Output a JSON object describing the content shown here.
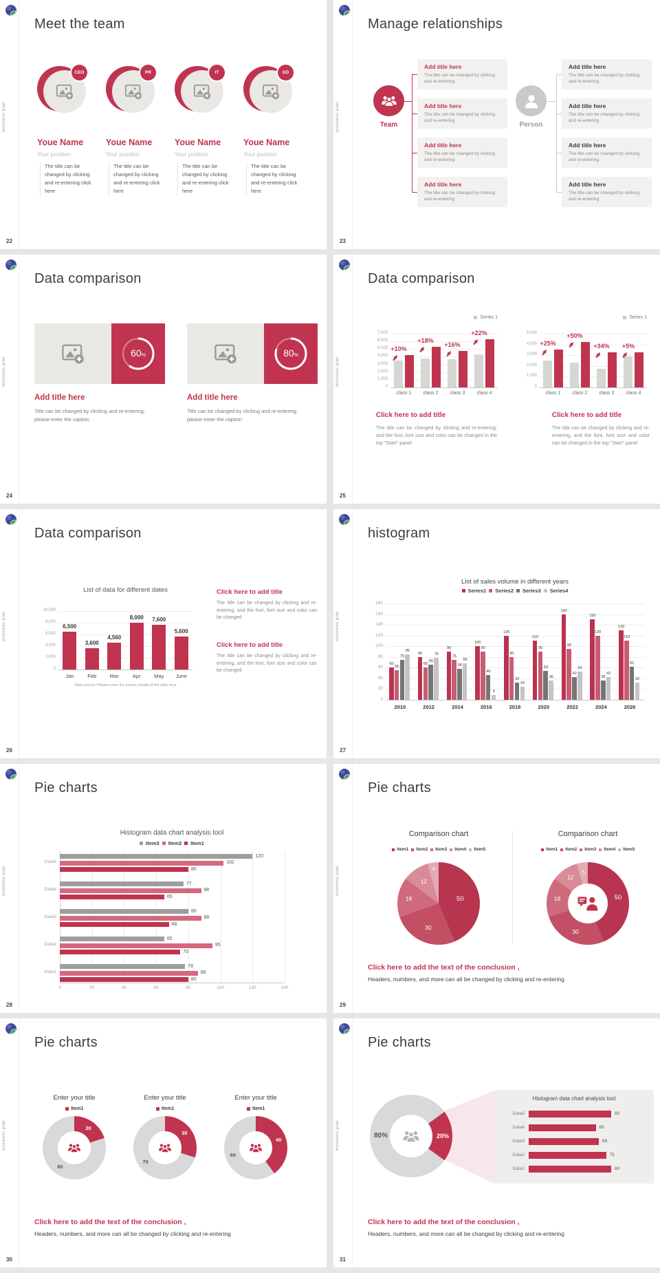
{
  "strings": {
    "sidebar_label": "Business plan",
    "percent_sign": "%",
    "conclusion_title": "Click here to add the text of the conclusion ,",
    "conclusion_text": "Headers, numbers, and more can all be changed by clicking and re-entering"
  },
  "colors": {
    "accent": "#c0344f",
    "accent_dark": "#b93350",
    "pink": "#d4697d",
    "bar_gray": "#d6d6d3",
    "series_gray_dark": "#757575",
    "series_gray_light": "#c4c4c4",
    "donut_gray": "#d9d9d9",
    "pie_palette": [
      "#b7354f",
      "#c34f65",
      "#ce6a7c",
      "#d98b98",
      "#e3abb4"
    ]
  },
  "slides": [
    {
      "page": "22",
      "title": "Meet the team",
      "type": "team",
      "members": [
        {
          "badge": "CEO",
          "name": "Youe Name",
          "position": "Your position",
          "desc": "The title can be changed by clicking and re-entering click here"
        },
        {
          "badge": "PR",
          "name": "Youe Name",
          "position": "Your position",
          "desc": "The title can be changed by clicking and re-entering click here"
        },
        {
          "badge": "IT",
          "name": "Youe Name",
          "position": "Your position",
          "desc": "The title can be changed by clicking and re-entering click here"
        },
        {
          "badge": "GD",
          "name": "Youe Name",
          "position": "Your position",
          "desc": "The title can be changed by clicking and re-entering click here"
        }
      ]
    },
    {
      "page": "23",
      "title": "Manage relationships",
      "type": "relationships",
      "groups": [
        {
          "label": "Team",
          "boxes": [
            {
              "title": "Add title here",
              "text": "The title can be changed by clicking and re-entering"
            },
            {
              "title": "Add title here",
              "text": "The title can be changed by clicking and re-entering"
            },
            {
              "title": "Add title here",
              "text": "The title can be changed by clicking and re-entering"
            },
            {
              "title": "Add title here",
              "text": "The title can be changed by clicking and re-entering"
            }
          ]
        },
        {
          "label": "Person",
          "boxes": [
            {
              "title": "Add title here",
              "text": "The title can be changed by clicking and re-entering"
            },
            {
              "title": "Add title here",
              "text": "The title can be changed by clicking and re-entering"
            },
            {
              "title": "Add title here",
              "text": "The title can be changed by clicking and re-entering"
            },
            {
              "title": "Add title here",
              "text": "The title can be changed by clicking and re-entering"
            }
          ]
        }
      ]
    },
    {
      "page": "24",
      "title": "Data comparison",
      "type": "percent_cards",
      "cards": [
        {
          "percent": "60",
          "title": "Add title here",
          "caption": "Title can be changed by clicking and re-entering, please enter the caption"
        },
        {
          "percent": "80",
          "title": "Add title here",
          "caption": "Title can be changed by clicking and re-entering, please enter the caption"
        }
      ]
    },
    {
      "page": "25",
      "title": "Data comparison",
      "type": "dual_bar",
      "chart_refs": [
        0,
        1
      ],
      "blocks": [
        {
          "title": "Click here to add title",
          "text": "The title can be changed by clicking and re-entering, and the font, font size and color can be changed in the top \"Start\" panel"
        },
        {
          "title": "Click here to add title",
          "text": "The title can be changed by clicking and re-entering, and the font, font size and color can be changed in the top \"Start\" panel"
        }
      ]
    },
    {
      "page": "26",
      "title": "Data comparison",
      "type": "month_bar",
      "chart_refs": [
        2
      ],
      "blocks": [
        {
          "title": "Click here to add title",
          "text": "The title can be changed by clicking and re-entering, and the font, font size and color can be changed"
        },
        {
          "title": "Click here to add title",
          "text": "The title can be changed by clicking and re-entering, and the font, font size and color can be changed"
        }
      ]
    },
    {
      "page": "27",
      "title": "histogram",
      "type": "histogram",
      "chart_refs": [
        3
      ]
    },
    {
      "page": "28",
      "title": "Pie charts",
      "type": "hbar",
      "chart_refs": [
        4
      ]
    },
    {
      "page": "29",
      "title": "Pie charts",
      "type": "pies",
      "chart_refs": [
        5,
        6
      ]
    },
    {
      "page": "30",
      "title": "Pie charts",
      "type": "donuts3",
      "chart_refs": [
        7,
        8,
        9
      ]
    },
    {
      "page": "31",
      "title": "Pie charts",
      "type": "magnify",
      "chart_refs": [
        10,
        11
      ]
    }
  ],
  "chart_data": [
    {
      "type": "bar",
      "legend": [
        "Series 1"
      ],
      "categories": [
        "class 1",
        "class 2",
        "class 3",
        "class 4"
      ],
      "series": [
        {
          "color": "gray",
          "values": [
            3500,
            3800,
            3700,
            4300
          ]
        },
        {
          "color": "red",
          "values": [
            4200,
            5300,
            4800,
            6300
          ]
        }
      ],
      "annotations": [
        "+10%",
        "+18%",
        "+16%",
        "+22%"
      ],
      "ylim": [
        0,
        7000
      ],
      "yticks": [
        "7,000",
        "6,000",
        "5,000",
        "4,000",
        "3,000",
        "2,000",
        "1,000",
        "0"
      ]
    },
    {
      "type": "bar",
      "legend": [
        "Series 1"
      ],
      "categories": [
        "class 1",
        "class 2",
        "class 3",
        "class 4"
      ],
      "series": [
        {
          "color": "gray",
          "values": [
            2500,
            2300,
            1750,
            2900
          ]
        },
        {
          "color": "red",
          "values": [
            3500,
            4200,
            3250,
            3250
          ]
        }
      ],
      "annotations": [
        "+25%",
        "+50%",
        "+34%",
        "+5%"
      ],
      "ylim": [
        0,
        5000
      ],
      "yticks": [
        "5,000",
        "4,000",
        "3,000",
        "2,000",
        "1,000",
        "0"
      ]
    },
    {
      "type": "bar",
      "title": "List of data for different dates",
      "categories": [
        "Jan",
        "Feb",
        "Mar",
        "Apr",
        "May",
        "June"
      ],
      "values": [
        6500,
        3600,
        4560,
        8000,
        7600,
        5600
      ],
      "value_labels": [
        "6,500",
        "3,600",
        "4,560",
        "8,000",
        "7,600",
        "5,600"
      ],
      "ylim": [
        0,
        10000
      ],
      "yticks": [
        "10,000",
        "8,000",
        "6,000",
        "4,000",
        "2,000",
        "0"
      ],
      "source": "Data source: Please enter the source details of the data here"
    },
    {
      "type": "bar",
      "title": "List of sales volume in different years",
      "legend": [
        "Series1",
        "Series2",
        "Series3",
        "Series4"
      ],
      "categories": [
        "2010",
        "2012",
        "2014",
        "2016",
        "2018",
        "2020",
        "2022",
        "2024",
        "2026"
      ],
      "series": [
        {
          "name": "Series1",
          "values": [
            60,
            80,
            90,
            100,
            120,
            110,
            160,
            150,
            130
          ]
        },
        {
          "name": "Series2",
          "values": [
            55,
            60,
            75,
            90,
            80,
            90,
            95,
            120,
            110
          ]
        },
        {
          "name": "Series3",
          "values": [
            75,
            65,
            58,
            46,
            32,
            54,
            42,
            36,
            62
          ]
        },
        {
          "name": "Series4",
          "values": [
            85,
            78,
            68,
            9,
            24,
            36,
            53,
            42,
            32
          ]
        }
      ],
      "ylim": [
        0,
        180
      ],
      "yticks": [
        "180",
        "160",
        "140",
        "120",
        "100",
        "80",
        "60",
        "40",
        "20",
        "0"
      ]
    },
    {
      "type": "bar",
      "orientation": "horizontal",
      "title": "Histogram data chart analysis tool",
      "legend": [
        "Item3",
        "Item2",
        "Item1"
      ],
      "categories": [
        "Data5",
        "Data4",
        "Data3",
        "Data2",
        "Data1"
      ],
      "series": [
        {
          "name": "Item3",
          "values": [
            120,
            77,
            80,
            65,
            78
          ]
        },
        {
          "name": "Item2",
          "values": [
            102,
            88,
            88,
            95,
            86
          ]
        },
        {
          "name": "Item1",
          "values": [
            80,
            65,
            68,
            75,
            80
          ]
        }
      ],
      "xlim": [
        0,
        140
      ],
      "xticks": [
        "0",
        "20",
        "40",
        "60",
        "80",
        "100",
        "120",
        "140"
      ]
    },
    {
      "type": "pie",
      "title": "Comparison chart",
      "legend": [
        "Item1",
        "Item2",
        "Item3",
        "Item4",
        "Item5"
      ],
      "values": [
        50,
        30,
        18,
        12,
        5
      ]
    },
    {
      "type": "pie",
      "donut": true,
      "title": "Comparison chart",
      "legend": [
        "Item1",
        "Item2",
        "Item3",
        "Item4",
        "Item5"
      ],
      "values": [
        50,
        30,
        18,
        12,
        5
      ]
    },
    {
      "type": "pie",
      "donut": true,
      "title": "Enter your title",
      "legend": [
        "Item1"
      ],
      "values": [
        20,
        80
      ]
    },
    {
      "type": "pie",
      "donut": true,
      "title": "Enter your title",
      "legend": [
        "Item1"
      ],
      "values": [
        30,
        70
      ]
    },
    {
      "type": "pie",
      "donut": true,
      "title": "Enter your title",
      "legend": [
        "Item1"
      ],
      "values": [
        40,
        60
      ]
    },
    {
      "type": "pie",
      "donut": true,
      "values": [
        20,
        80
      ],
      "value_labels": [
        "20%",
        "80%"
      ]
    },
    {
      "type": "bar",
      "orientation": "horizontal",
      "title": "Histogram data chart analysis tool",
      "categories": [
        "Data5",
        "Data4",
        "Data3",
        "Data2",
        "Data1"
      ],
      "values": [
        80,
        65,
        68,
        75,
        80
      ]
    }
  ]
}
